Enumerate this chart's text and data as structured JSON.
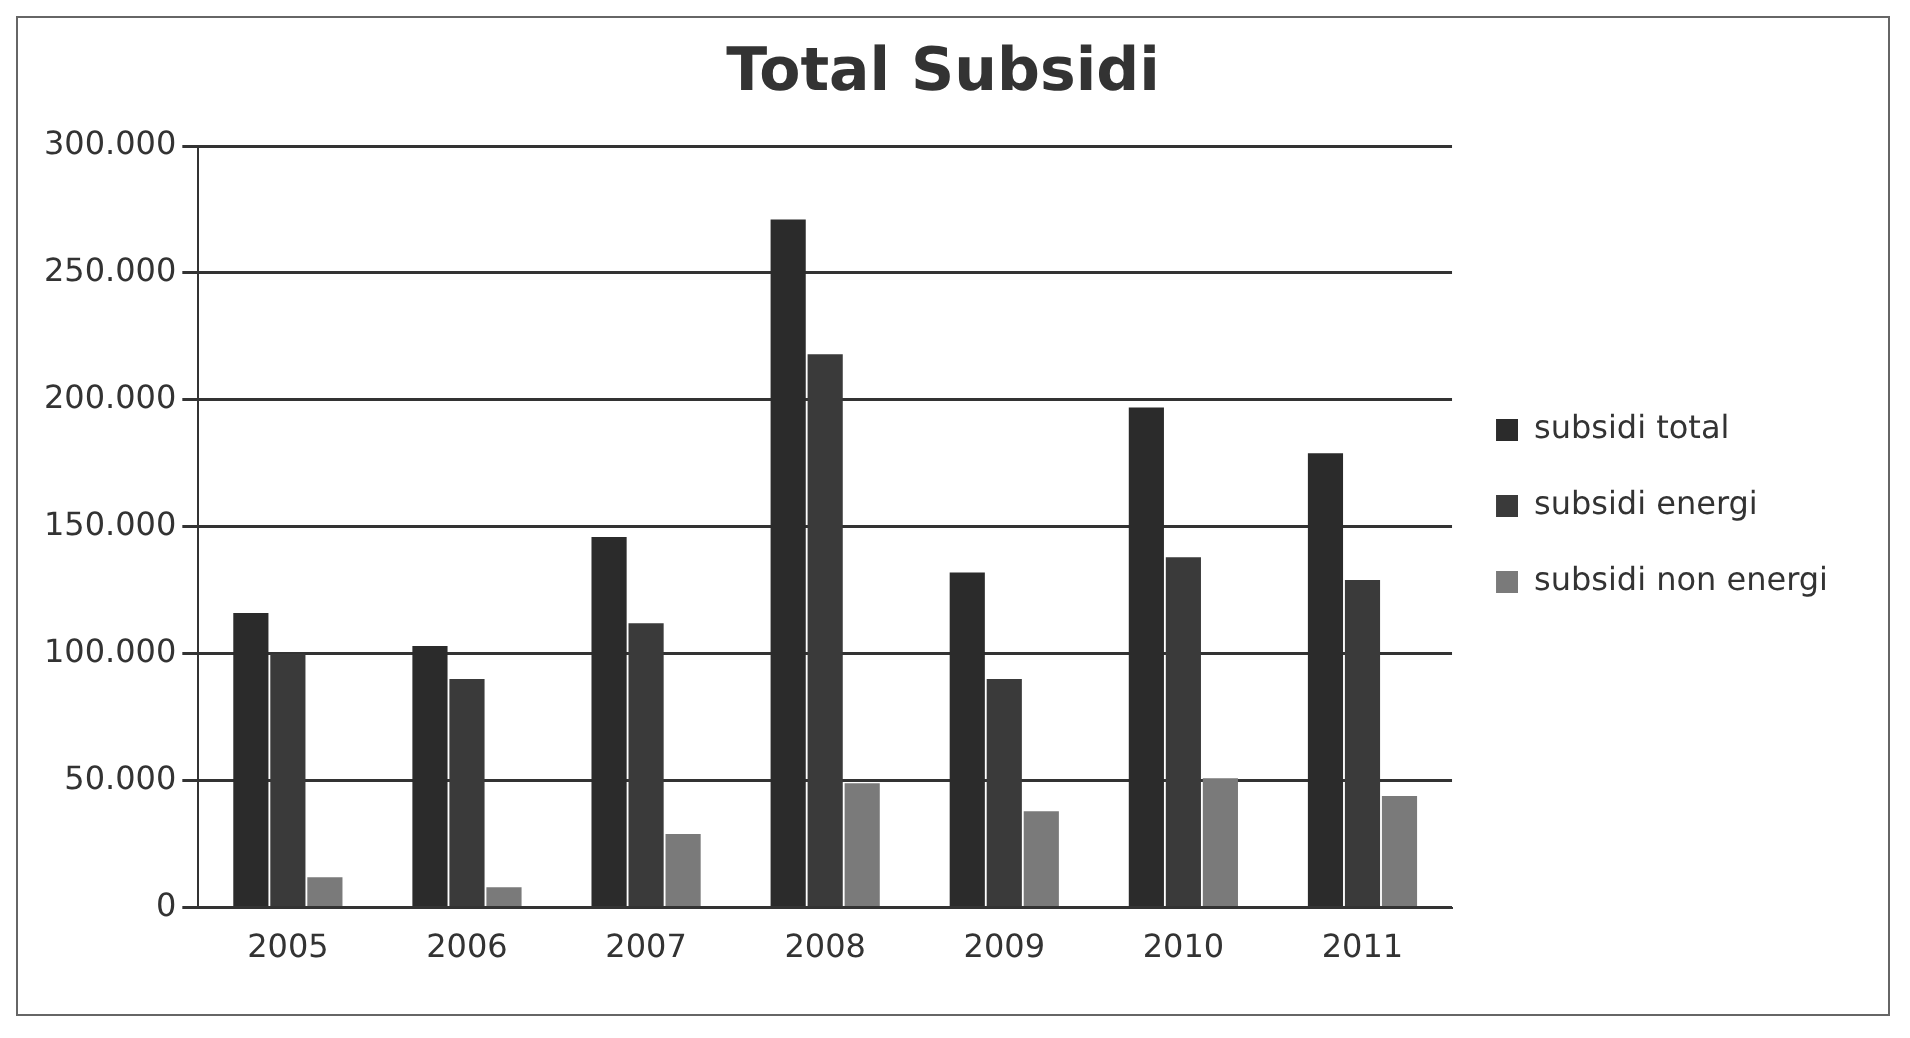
{
  "chart_data": {
    "type": "bar",
    "title": "Total Subsidi",
    "categories": [
      "2005",
      "2006",
      "2007",
      "2008",
      "2009",
      "2010",
      "2011"
    ],
    "series": [
      {
        "name": "subsidi total",
        "color": "#2b2b2b",
        "values": [
          116000,
          103000,
          146000,
          271000,
          132000,
          197000,
          179000
        ]
      },
      {
        "name": "subsidi energi",
        "color": "#3a3a3a",
        "values": [
          100000,
          90000,
          112000,
          218000,
          90000,
          138000,
          129000
        ]
      },
      {
        "name": "subsidi non energi",
        "color": "#7a7a7a",
        "values": [
          12000,
          8000,
          29000,
          49000,
          38000,
          51000,
          44000
        ]
      }
    ],
    "ylim": [
      0,
      300000
    ],
    "yticks": [
      {
        "value": 0,
        "label": "0"
      },
      {
        "value": 50000,
        "label": "50.000"
      },
      {
        "value": 100000,
        "label": "100.000"
      },
      {
        "value": 150000,
        "label": "150.000"
      },
      {
        "value": 200000,
        "label": "200.000"
      },
      {
        "value": 250000,
        "label": "250.000"
      },
      {
        "value": 300000,
        "label": "300.000"
      }
    ],
    "grid": "y",
    "legend": "right"
  }
}
